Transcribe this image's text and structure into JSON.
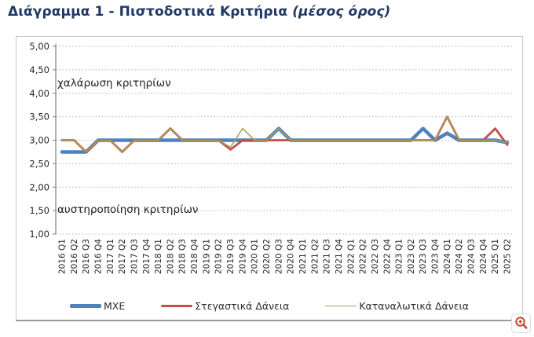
{
  "title": {
    "main": "Διάγραμμα 1 - Πιστοδοτικά Κριτήρια",
    "suffix": "(μέσος όρος)"
  },
  "annotations": {
    "loosening": "χαλάρωση κριτηρίων",
    "tightening": "αυστηροποίηση κριτηρίων"
  },
  "icons": {
    "zoom_in": "zoom-in-icon"
  },
  "colors": {
    "title": "#1f3864",
    "mxe": "#4F81BD",
    "housing": "#C0504D",
    "consumer": "#A5A552",
    "grid": "#b5b5b5",
    "axis": "#7f7f7f",
    "zoom_icon": "#c4472f"
  },
  "chart_data": {
    "type": "line",
    "title": "Διάγραμμα 1 - Πιστοδοτικά Κριτήρια (μέσος όρος)",
    "ylim": [
      1.0,
      5.0
    ],
    "ytick_step": 0.5,
    "ytick_labels": [
      "5,00",
      "4,50",
      "4,00",
      "3,50",
      "3,00",
      "2,50",
      "2,00",
      "1,50",
      "1,00"
    ],
    "grid": "horizontal-dotted",
    "legend_position": "bottom",
    "categories": [
      "2016 Q1",
      "2016 Q2",
      "2016 Q3",
      "2016 Q4",
      "2017 Q1",
      "2017 Q2",
      "2017 Q3",
      "2017 Q4",
      "2018 Q1",
      "2018 Q2",
      "2018 Q3",
      "2018 Q4",
      "2019 Q1",
      "2019 Q2",
      "2019 Q3",
      "2019 Q4",
      "2020 Q1",
      "2020 Q2",
      "2020 Q3",
      "2020 Q4",
      "2021 Q1",
      "2021 Q2",
      "2021 Q3",
      "2021 Q4",
      "2022 Q1",
      "2022 Q2",
      "2022 Q3",
      "2022 Q4",
      "2023 Q1",
      "2023 Q2",
      "2023 Q3",
      "2023 Q4",
      "2024 Q1",
      "2024 Q2",
      "2024 Q3",
      "2024 Q4",
      "2025 Q1",
      "2025 Q2"
    ],
    "series": [
      {
        "name": "ΜΧΕ",
        "color": "#4F81BD",
        "width": 4.5,
        "values": [
          2.75,
          2.75,
          2.75,
          3.0,
          3.0,
          3.0,
          3.0,
          3.0,
          3.0,
          3.0,
          3.0,
          3.0,
          3.0,
          3.0,
          3.0,
          3.0,
          3.0,
          3.0,
          3.25,
          3.0,
          3.0,
          3.0,
          3.0,
          3.0,
          3.0,
          3.0,
          3.0,
          3.0,
          3.0,
          3.0,
          3.25,
          3.0,
          3.15,
          3.0,
          3.0,
          3.0,
          3.0,
          2.95
        ]
      },
      {
        "name": "Στεγαστικά Δάνεια",
        "color": "#C0504D",
        "width": 2.8,
        "values": [
          3.0,
          3.0,
          2.75,
          3.0,
          3.0,
          2.75,
          3.0,
          3.0,
          3.0,
          3.25,
          3.0,
          3.0,
          3.0,
          3.0,
          2.8,
          3.0,
          3.0,
          3.0,
          3.0,
          3.0,
          3.0,
          3.0,
          3.0,
          3.0,
          3.0,
          3.0,
          3.0,
          3.0,
          3.0,
          3.0,
          3.0,
          3.0,
          3.5,
          3.0,
          3.0,
          3.0,
          3.25,
          2.9
        ]
      },
      {
        "name": "Καταναλωτικά Δάνεια",
        "color": "#A5A552",
        "width": 1.6,
        "values": [
          3.0,
          3.0,
          2.75,
          3.0,
          3.0,
          2.75,
          3.0,
          3.0,
          3.0,
          3.25,
          3.0,
          3.0,
          3.0,
          3.0,
          2.85,
          3.25,
          3.0,
          3.0,
          3.25,
          3.0,
          3.0,
          3.0,
          3.0,
          3.0,
          3.0,
          3.0,
          3.0,
          3.0,
          3.0,
          3.0,
          3.0,
          3.0,
          3.5,
          3.0,
          3.0,
          3.0,
          3.0,
          2.95
        ]
      }
    ]
  }
}
